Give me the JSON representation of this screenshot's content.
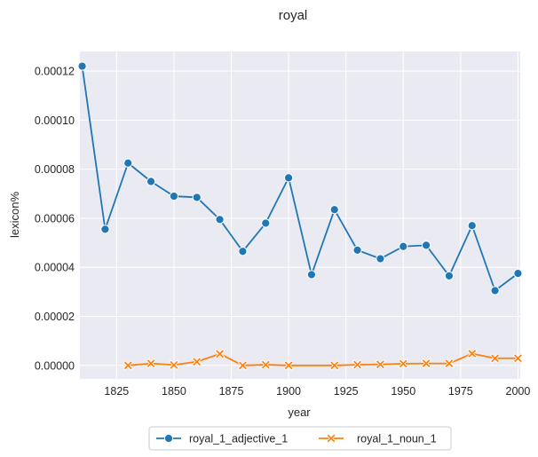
{
  "chart_data": {
    "type": "line",
    "title": "royal",
    "xlabel": "year",
    "ylabel": "lexicon%",
    "xlim": [
      1809,
      2001
    ],
    "ylim": [
      -5.5e-06,
      0.000128
    ],
    "x_ticks": [
      1825,
      1850,
      1875,
      1900,
      1925,
      1950,
      1975,
      2000
    ],
    "x_tick_labels": [
      "1825",
      "1850",
      "1875",
      "1900",
      "1925",
      "1950",
      "1975",
      "2000"
    ],
    "y_ticks": [
      0,
      2e-05,
      4e-05,
      6e-05,
      8e-05,
      0.0001,
      0.00012
    ],
    "y_tick_labels": [
      "0.00000",
      "0.00002",
      "0.00004",
      "0.00006",
      "0.00008",
      "0.00010",
      "0.00012"
    ],
    "grid": true,
    "legend_position": "bottom-center",
    "series": [
      {
        "name": "royal_1_adjective_1",
        "color": "#1f77b4",
        "marker": "circle",
        "x": [
          1810,
          1820,
          1830,
          1840,
          1850,
          1860,
          1870,
          1880,
          1890,
          1900,
          1910,
          1920,
          1930,
          1940,
          1950,
          1960,
          1970,
          1980,
          1990,
          2000
        ],
        "values": [
          0.000122,
          5.55e-05,
          8.25e-05,
          7.5e-05,
          6.9e-05,
          6.85e-05,
          5.95e-05,
          4.65e-05,
          5.8e-05,
          7.65e-05,
          3.7e-05,
          6.35e-05,
          4.7e-05,
          4.35e-05,
          4.85e-05,
          4.9e-05,
          3.65e-05,
          5.7e-05,
          3.05e-05,
          3.75e-05
        ]
      },
      {
        "name": "royal_1_noun_1",
        "color": "#ff7f0e",
        "marker": "x",
        "x": [
          1830,
          1840,
          1850,
          1860,
          1870,
          1880,
          1890,
          1900,
          1920,
          1930,
          1940,
          1950,
          1960,
          1970,
          1980,
          1990,
          2000
        ],
        "values": [
          0,
          8e-07,
          2e-07,
          1.5e-06,
          4.7e-06,
          0,
          3e-07,
          0,
          0,
          3e-07,
          4e-07,
          7e-07,
          8e-07,
          8e-07,
          4.8e-06,
          2.9e-06,
          2.9e-06
        ]
      }
    ]
  }
}
